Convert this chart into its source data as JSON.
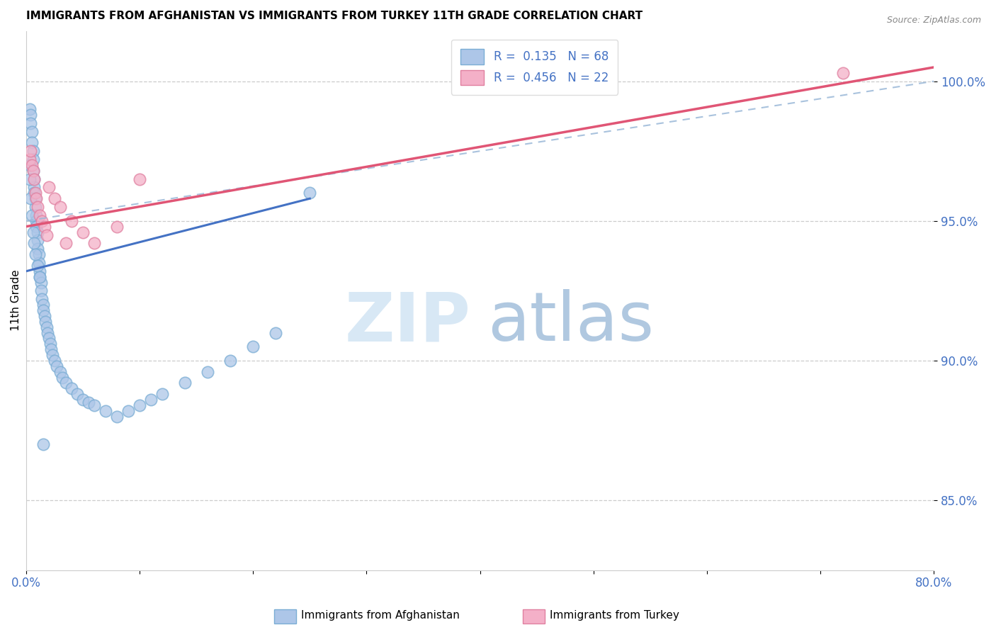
{
  "title": "IMMIGRANTS FROM AFGHANISTAN VS IMMIGRANTS FROM TURKEY 11TH GRADE CORRELATION CHART",
  "source": "Source: ZipAtlas.com",
  "ylabel": "11th Grade",
  "blue_color": "#adc6e8",
  "blue_edge": "#7aadd4",
  "pink_color": "#f4b0c8",
  "pink_edge": "#e080a0",
  "blue_line_color": "#4472c4",
  "pink_line_color": "#e05575",
  "dash_color": "#9ab8d8",
  "watermark_zip": "#d8e8f5",
  "watermark_atlas": "#b0c8e0",
  "afg_x": [
    0.003,
    0.004,
    0.004,
    0.005,
    0.005,
    0.006,
    0.006,
    0.006,
    0.007,
    0.007,
    0.007,
    0.008,
    0.008,
    0.009,
    0.009,
    0.009,
    0.01,
    0.01,
    0.01,
    0.011,
    0.011,
    0.012,
    0.012,
    0.013,
    0.013,
    0.014,
    0.015,
    0.015,
    0.016,
    0.017,
    0.018,
    0.019,
    0.02,
    0.021,
    0.022,
    0.023,
    0.025,
    0.027,
    0.03,
    0.032,
    0.035,
    0.04,
    0.045,
    0.05,
    0.055,
    0.06,
    0.07,
    0.08,
    0.09,
    0.1,
    0.11,
    0.12,
    0.14,
    0.16,
    0.18,
    0.2,
    0.22,
    0.25,
    0.003,
    0.003,
    0.004,
    0.005,
    0.006,
    0.007,
    0.008,
    0.01,
    0.012,
    0.015
  ],
  "afg_y": [
    0.99,
    0.988,
    0.985,
    0.982,
    0.978,
    0.975,
    0.972,
    0.968,
    0.965,
    0.962,
    0.96,
    0.958,
    0.955,
    0.952,
    0.95,
    0.948,
    0.946,
    0.943,
    0.94,
    0.938,
    0.935,
    0.932,
    0.93,
    0.928,
    0.925,
    0.922,
    0.92,
    0.918,
    0.916,
    0.914,
    0.912,
    0.91,
    0.908,
    0.906,
    0.904,
    0.902,
    0.9,
    0.898,
    0.896,
    0.894,
    0.892,
    0.89,
    0.888,
    0.886,
    0.885,
    0.884,
    0.882,
    0.88,
    0.882,
    0.884,
    0.886,
    0.888,
    0.892,
    0.896,
    0.9,
    0.905,
    0.91,
    0.96,
    0.97,
    0.965,
    0.958,
    0.952,
    0.946,
    0.942,
    0.938,
    0.934,
    0.93,
    0.87
  ],
  "tur_x": [
    0.003,
    0.004,
    0.005,
    0.006,
    0.007,
    0.008,
    0.009,
    0.01,
    0.012,
    0.014,
    0.016,
    0.018,
    0.02,
    0.025,
    0.03,
    0.035,
    0.04,
    0.05,
    0.06,
    0.08,
    0.1,
    0.72
  ],
  "tur_y": [
    0.972,
    0.975,
    0.97,
    0.968,
    0.965,
    0.96,
    0.958,
    0.955,
    0.952,
    0.95,
    0.948,
    0.945,
    0.962,
    0.958,
    0.955,
    0.942,
    0.95,
    0.946,
    0.942,
    0.948,
    0.965,
    1.003
  ],
  "afg_line_x": [
    0.0,
    0.25
  ],
  "afg_line_y": [
    0.932,
    0.958
  ],
  "tur_line_x": [
    0.0,
    0.8
  ],
  "tur_line_y": [
    0.948,
    1.005
  ],
  "dash_line_x": [
    0.0,
    0.8
  ],
  "dash_line_y": [
    0.95,
    1.0
  ],
  "xmin": 0.0,
  "xmax": 0.8,
  "ymin": 0.825,
  "ymax": 1.018,
  "ytick_vals": [
    0.85,
    0.9,
    0.95,
    1.0
  ],
  "ytick_labels": [
    "85.0%",
    "90.0%",
    "95.0%",
    "100.0%"
  ],
  "legend_label1": "R =  0.135   N = 68",
  "legend_label2": "R =  0.456   N = 22",
  "bottom_label1": "Immigrants from Afghanistan",
  "bottom_label2": "Immigrants from Turkey"
}
